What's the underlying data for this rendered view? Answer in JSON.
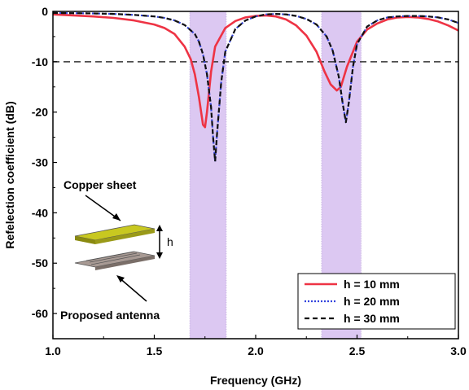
{
  "chart_data": {
    "type": "line",
    "xlabel": "Frequency (GHz)",
    "ylabel": "Refelection coefficient (dB)",
    "xlim": [
      1.0,
      3.0
    ],
    "ylim": [
      -65,
      0
    ],
    "xticks": [
      "1.0",
      "1.5",
      "2.0",
      "2.5",
      "3.0"
    ],
    "yticks": [
      "0",
      "-10",
      "-20",
      "-30",
      "-40",
      "-50",
      "-60"
    ],
    "x_tick_values": [
      1.0,
      1.5,
      2.0,
      2.5,
      3.0
    ],
    "y_tick_values": [
      0,
      -10,
      -20,
      -30,
      -40,
      -50,
      -60
    ],
    "grid": false,
    "legend_position": "bottom-right",
    "reference_line": {
      "y": -10,
      "color": "#333333",
      "style": "dashed"
    },
    "shaded_bands": [
      {
        "x_start": 1.675,
        "x_end": 1.855,
        "color": "#dcc8f2"
      },
      {
        "x_start": 2.325,
        "x_end": 2.52,
        "color": "#dcc8f2"
      }
    ],
    "series": [
      {
        "name": "h = 10 mm",
        "color": "#ee3344",
        "style": "solid",
        "x": [
          1.0,
          1.1,
          1.2,
          1.3,
          1.4,
          1.5,
          1.55,
          1.6,
          1.65,
          1.68,
          1.7,
          1.72,
          1.74,
          1.75,
          1.76,
          1.78,
          1.8,
          1.85,
          1.9,
          1.95,
          2.0,
          2.05,
          2.1,
          2.15,
          2.2,
          2.25,
          2.3,
          2.34,
          2.37,
          2.4,
          2.42,
          2.45,
          2.5,
          2.55,
          2.6,
          2.65,
          2.7,
          2.75,
          2.8,
          2.85,
          2.9,
          2.95,
          3.0
        ],
        "y": [
          -0.6,
          -0.8,
          -1.0,
          -1.3,
          -1.8,
          -2.6,
          -3.3,
          -4.5,
          -7.0,
          -9.5,
          -12.5,
          -17.0,
          -22.5,
          -23.0,
          -20.0,
          -12.0,
          -7.0,
          -3.3,
          -1.9,
          -1.2,
          -0.9,
          -0.8,
          -1.0,
          -1.6,
          -2.8,
          -4.8,
          -8.0,
          -12.0,
          -14.5,
          -15.7,
          -15.0,
          -11.0,
          -6.0,
          -3.6,
          -2.4,
          -1.6,
          -1.2,
          -1.1,
          -1.2,
          -1.5,
          -2.0,
          -2.8,
          -3.8
        ]
      },
      {
        "name": "h = 20 mm",
        "color": "#3344dd",
        "style": "dotted",
        "x": [
          1.0,
          1.1,
          1.2,
          1.3,
          1.4,
          1.5,
          1.55,
          1.6,
          1.65,
          1.7,
          1.72,
          1.74,
          1.76,
          1.78,
          1.79,
          1.8,
          1.81,
          1.83,
          1.85,
          1.9,
          1.95,
          2.0,
          2.05,
          2.1,
          2.15,
          2.2,
          2.25,
          2.3,
          2.35,
          2.38,
          2.41,
          2.43,
          2.445,
          2.46,
          2.48,
          2.5,
          2.55,
          2.6,
          2.65,
          2.7,
          2.75,
          2.8,
          2.85,
          2.9,
          2.95,
          3.0
        ],
        "y": [
          -0.3,
          -0.35,
          -0.4,
          -0.5,
          -0.7,
          -1.0,
          -1.3,
          -1.8,
          -2.7,
          -4.5,
          -6.0,
          -8.5,
          -12.5,
          -19.0,
          -25.0,
          -29.8,
          -24.0,
          -14.0,
          -8.0,
          -3.5,
          -1.8,
          -1.0,
          -0.6,
          -0.5,
          -0.6,
          -0.9,
          -1.5,
          -2.6,
          -5.0,
          -7.8,
          -13.0,
          -18.5,
          -22.0,
          -18.0,
          -11.0,
          -6.5,
          -3.0,
          -1.8,
          -1.2,
          -1.0,
          -0.9,
          -0.9,
          -1.0,
          -1.2,
          -1.6,
          -2.3
        ]
      },
      {
        "name": "h = 30 mm",
        "color": "#111111",
        "style": "dashed",
        "x": [
          1.0,
          1.1,
          1.2,
          1.3,
          1.4,
          1.5,
          1.55,
          1.6,
          1.65,
          1.7,
          1.72,
          1.74,
          1.76,
          1.78,
          1.79,
          1.8,
          1.81,
          1.83,
          1.85,
          1.9,
          1.95,
          2.0,
          2.05,
          2.1,
          2.15,
          2.2,
          2.25,
          2.3,
          2.35,
          2.38,
          2.41,
          2.43,
          2.445,
          2.46,
          2.48,
          2.5,
          2.55,
          2.6,
          2.65,
          2.7,
          2.75,
          2.8,
          2.85,
          2.9,
          2.95,
          3.0
        ],
        "y": [
          -0.3,
          -0.35,
          -0.4,
          -0.5,
          -0.7,
          -1.0,
          -1.3,
          -1.8,
          -2.7,
          -4.5,
          -6.0,
          -8.5,
          -12.5,
          -19.0,
          -25.0,
          -29.8,
          -24.0,
          -14.0,
          -8.0,
          -3.5,
          -1.8,
          -1.0,
          -0.6,
          -0.5,
          -0.6,
          -0.9,
          -1.5,
          -2.6,
          -5.0,
          -7.8,
          -13.0,
          -18.5,
          -22.0,
          -18.0,
          -11.0,
          -6.5,
          -3.0,
          -1.8,
          -1.2,
          -1.0,
          -0.9,
          -0.9,
          -1.0,
          -1.2,
          -1.6,
          -2.3
        ]
      }
    ],
    "annotations": {
      "copper_sheet": "Copper sheet",
      "proposed_antenna": "Proposed antenna",
      "height": "h",
      "copper_color": "#c8c820",
      "antenna_color": "#a89a94"
    }
  }
}
